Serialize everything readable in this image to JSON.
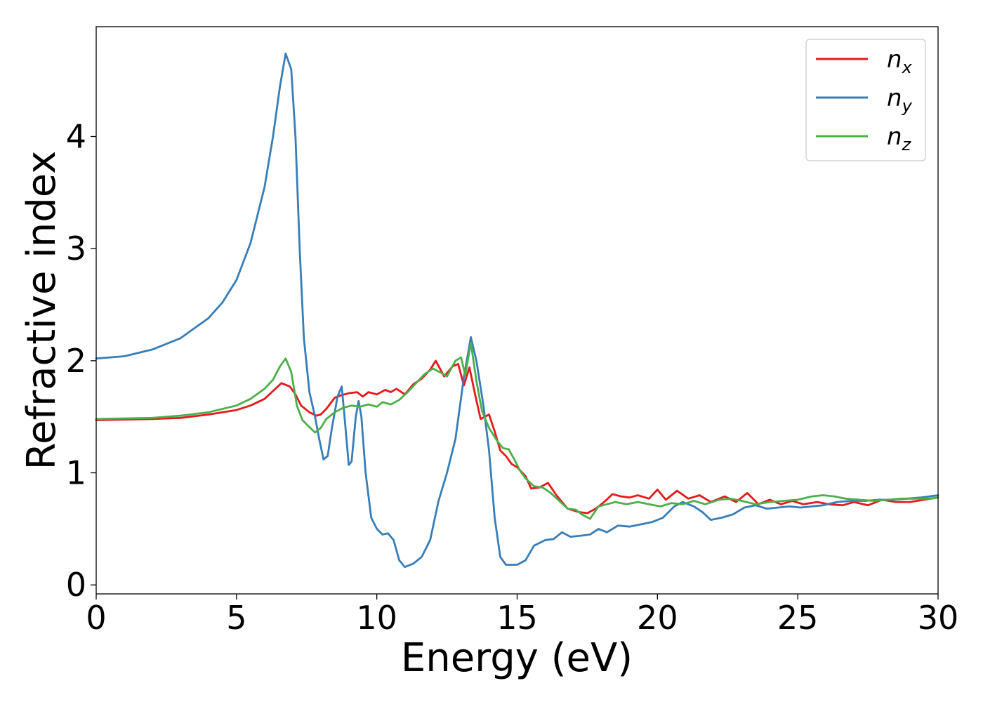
{
  "chart_data": {
    "type": "line",
    "title": "",
    "xlabel": "Energy (eV)",
    "ylabel": "Refractive index",
    "xlim": [
      0,
      30
    ],
    "ylim": [
      -0.08,
      4.98
    ],
    "xticks": [
      0,
      5,
      10,
      15,
      20,
      25,
      30
    ],
    "yticks": [
      0,
      1,
      2,
      3,
      4
    ],
    "grid": false,
    "legend_position": "top-right",
    "series": [
      {
        "name": "n_x",
        "legend_base": "n",
        "legend_sub": "x",
        "color": "#e41a1c",
        "points": [
          [
            0,
            1.47
          ],
          [
            2,
            1.48
          ],
          [
            3,
            1.49
          ],
          [
            4,
            1.52
          ],
          [
            5,
            1.56
          ],
          [
            5.5,
            1.6
          ],
          [
            6,
            1.66
          ],
          [
            6.3,
            1.73
          ],
          [
            6.6,
            1.8
          ],
          [
            6.9,
            1.77
          ],
          [
            7.1,
            1.7
          ],
          [
            7.3,
            1.6
          ],
          [
            7.6,
            1.54
          ],
          [
            7.85,
            1.51
          ],
          [
            8.0,
            1.52
          ],
          [
            8.2,
            1.57
          ],
          [
            8.5,
            1.67
          ],
          [
            8.7,
            1.69
          ],
          [
            9.0,
            1.71
          ],
          [
            9.3,
            1.72
          ],
          [
            9.5,
            1.68
          ],
          [
            9.7,
            1.72
          ],
          [
            10.0,
            1.7
          ],
          [
            10.3,
            1.74
          ],
          [
            10.5,
            1.72
          ],
          [
            10.7,
            1.75
          ],
          [
            11.0,
            1.7
          ],
          [
            11.3,
            1.79
          ],
          [
            11.6,
            1.84
          ],
          [
            11.9,
            1.92
          ],
          [
            12.1,
            2.0
          ],
          [
            12.4,
            1.86
          ],
          [
            12.7,
            1.95
          ],
          [
            12.9,
            1.97
          ],
          [
            13.1,
            1.78
          ],
          [
            13.3,
            1.94
          ],
          [
            13.5,
            1.7
          ],
          [
            13.7,
            1.48
          ],
          [
            14.0,
            1.52
          ],
          [
            14.2,
            1.37
          ],
          [
            14.4,
            1.2
          ],
          [
            14.6,
            1.15
          ],
          [
            14.8,
            1.08
          ],
          [
            15.0,
            1.05
          ],
          [
            15.3,
            0.97
          ],
          [
            15.5,
            0.86
          ],
          [
            15.8,
            0.87
          ],
          [
            16.1,
            0.91
          ],
          [
            16.4,
            0.8
          ],
          [
            16.8,
            0.68
          ],
          [
            17.2,
            0.65
          ],
          [
            17.5,
            0.64
          ],
          [
            17.8,
            0.68
          ],
          [
            18.1,
            0.74
          ],
          [
            18.4,
            0.81
          ],
          [
            18.7,
            0.79
          ],
          [
            19.0,
            0.78
          ],
          [
            19.3,
            0.8
          ],
          [
            19.7,
            0.77
          ],
          [
            20.0,
            0.85
          ],
          [
            20.3,
            0.76
          ],
          [
            20.7,
            0.84
          ],
          [
            21.1,
            0.77
          ],
          [
            21.5,
            0.8
          ],
          [
            21.9,
            0.74
          ],
          [
            22.4,
            0.79
          ],
          [
            22.8,
            0.74
          ],
          [
            23.2,
            0.82
          ],
          [
            23.6,
            0.72
          ],
          [
            24.0,
            0.76
          ],
          [
            24.4,
            0.72
          ],
          [
            24.8,
            0.75
          ],
          [
            25.2,
            0.72
          ],
          [
            25.7,
            0.74
          ],
          [
            26.1,
            0.72
          ],
          [
            26.6,
            0.71
          ],
          [
            27.0,
            0.74
          ],
          [
            27.5,
            0.71
          ],
          [
            28.0,
            0.76
          ],
          [
            28.5,
            0.74
          ],
          [
            29.0,
            0.74
          ],
          [
            29.5,
            0.76
          ],
          [
            30,
            0.78
          ]
        ]
      },
      {
        "name": "n_y",
        "legend_base": "n",
        "legend_sub": "y",
        "color": "#377eb8",
        "points": [
          [
            0,
            2.02
          ],
          [
            1,
            2.04
          ],
          [
            2,
            2.1
          ],
          [
            3,
            2.2
          ],
          [
            4,
            2.38
          ],
          [
            4.5,
            2.52
          ],
          [
            5,
            2.72
          ],
          [
            5.5,
            3.05
          ],
          [
            6,
            3.55
          ],
          [
            6.3,
            4.0
          ],
          [
            6.55,
            4.45
          ],
          [
            6.75,
            4.74
          ],
          [
            6.95,
            4.6
          ],
          [
            7.1,
            4.0
          ],
          [
            7.25,
            3.0
          ],
          [
            7.4,
            2.2
          ],
          [
            7.6,
            1.72
          ],
          [
            7.8,
            1.5
          ],
          [
            7.95,
            1.3
          ],
          [
            8.1,
            1.12
          ],
          [
            8.25,
            1.15
          ],
          [
            8.4,
            1.4
          ],
          [
            8.6,
            1.68
          ],
          [
            8.75,
            1.77
          ],
          [
            8.85,
            1.5
          ],
          [
            9.0,
            1.07
          ],
          [
            9.1,
            1.1
          ],
          [
            9.25,
            1.5
          ],
          [
            9.35,
            1.64
          ],
          [
            9.45,
            1.5
          ],
          [
            9.6,
            1.0
          ],
          [
            9.8,
            0.6
          ],
          [
            10.0,
            0.5
          ],
          [
            10.2,
            0.45
          ],
          [
            10.4,
            0.46
          ],
          [
            10.6,
            0.4
          ],
          [
            10.8,
            0.22
          ],
          [
            11.0,
            0.16
          ],
          [
            11.3,
            0.19
          ],
          [
            11.6,
            0.25
          ],
          [
            11.9,
            0.4
          ],
          [
            12.2,
            0.75
          ],
          [
            12.5,
            1.0
          ],
          [
            12.8,
            1.3
          ],
          [
            13.1,
            1.85
          ],
          [
            13.35,
            2.21
          ],
          [
            13.55,
            2.0
          ],
          [
            13.8,
            1.6
          ],
          [
            14.0,
            1.2
          ],
          [
            14.2,
            0.6
          ],
          [
            14.4,
            0.25
          ],
          [
            14.6,
            0.18
          ],
          [
            15.0,
            0.18
          ],
          [
            15.3,
            0.22
          ],
          [
            15.6,
            0.35
          ],
          [
            16.0,
            0.4
          ],
          [
            16.3,
            0.41
          ],
          [
            16.6,
            0.47
          ],
          [
            16.9,
            0.43
          ],
          [
            17.3,
            0.44
          ],
          [
            17.6,
            0.45
          ],
          [
            17.9,
            0.5
          ],
          [
            18.2,
            0.47
          ],
          [
            18.6,
            0.53
          ],
          [
            19.0,
            0.52
          ],
          [
            19.4,
            0.54
          ],
          [
            19.8,
            0.56
          ],
          [
            20.2,
            0.6
          ],
          [
            20.6,
            0.7
          ],
          [
            20.9,
            0.74
          ],
          [
            21.3,
            0.7
          ],
          [
            21.6,
            0.65
          ],
          [
            21.9,
            0.58
          ],
          [
            22.3,
            0.6
          ],
          [
            22.7,
            0.63
          ],
          [
            23.1,
            0.69
          ],
          [
            23.5,
            0.71
          ],
          [
            23.9,
            0.68
          ],
          [
            24.3,
            0.69
          ],
          [
            24.7,
            0.7
          ],
          [
            25.1,
            0.69
          ],
          [
            25.5,
            0.7
          ],
          [
            25.9,
            0.71
          ],
          [
            26.4,
            0.74
          ],
          [
            26.9,
            0.75
          ],
          [
            27.4,
            0.75
          ],
          [
            27.9,
            0.76
          ],
          [
            28.4,
            0.76
          ],
          [
            28.9,
            0.77
          ],
          [
            29.4,
            0.78
          ],
          [
            30,
            0.8
          ]
        ]
      },
      {
        "name": "n_z",
        "legend_base": "n",
        "legend_sub": "z",
        "color": "#4daf4a",
        "points": [
          [
            0,
            1.48
          ],
          [
            2,
            1.49
          ],
          [
            3,
            1.51
          ],
          [
            4,
            1.54
          ],
          [
            5,
            1.6
          ],
          [
            5.5,
            1.66
          ],
          [
            6,
            1.75
          ],
          [
            6.3,
            1.83
          ],
          [
            6.55,
            1.95
          ],
          [
            6.75,
            2.02
          ],
          [
            6.95,
            1.9
          ],
          [
            7.15,
            1.6
          ],
          [
            7.35,
            1.47
          ],
          [
            7.55,
            1.42
          ],
          [
            7.8,
            1.36
          ],
          [
            8.0,
            1.4
          ],
          [
            8.2,
            1.48
          ],
          [
            8.5,
            1.54
          ],
          [
            8.8,
            1.58
          ],
          [
            9.1,
            1.6
          ],
          [
            9.4,
            1.59
          ],
          [
            9.7,
            1.61
          ],
          [
            10.0,
            1.59
          ],
          [
            10.2,
            1.63
          ],
          [
            10.5,
            1.61
          ],
          [
            10.8,
            1.65
          ],
          [
            11.1,
            1.72
          ],
          [
            11.4,
            1.8
          ],
          [
            11.7,
            1.88
          ],
          [
            12.0,
            1.93
          ],
          [
            12.3,
            1.89
          ],
          [
            12.5,
            1.86
          ],
          [
            12.8,
            2.0
          ],
          [
            13.0,
            2.03
          ],
          [
            13.15,
            1.87
          ],
          [
            13.35,
            2.16
          ],
          [
            13.55,
            1.82
          ],
          [
            13.75,
            1.55
          ],
          [
            14.0,
            1.4
          ],
          [
            14.3,
            1.28
          ],
          [
            14.5,
            1.22
          ],
          [
            14.7,
            1.21
          ],
          [
            14.9,
            1.12
          ],
          [
            15.1,
            1.02
          ],
          [
            15.3,
            0.95
          ],
          [
            15.6,
            0.88
          ],
          [
            15.9,
            0.87
          ],
          [
            16.2,
            0.82
          ],
          [
            16.5,
            0.75
          ],
          [
            16.8,
            0.68
          ],
          [
            17.1,
            0.67
          ],
          [
            17.3,
            0.63
          ],
          [
            17.6,
            0.59
          ],
          [
            17.9,
            0.7
          ],
          [
            18.2,
            0.72
          ],
          [
            18.5,
            0.74
          ],
          [
            18.9,
            0.72
          ],
          [
            19.3,
            0.74
          ],
          [
            19.7,
            0.72
          ],
          [
            20.1,
            0.7
          ],
          [
            20.5,
            0.73
          ],
          [
            20.9,
            0.72
          ],
          [
            21.3,
            0.75
          ],
          [
            21.7,
            0.72
          ],
          [
            22.2,
            0.76
          ],
          [
            22.6,
            0.77
          ],
          [
            23.0,
            0.75
          ],
          [
            23.5,
            0.72
          ],
          [
            24.0,
            0.74
          ],
          [
            24.5,
            0.75
          ],
          [
            25.0,
            0.76
          ],
          [
            25.5,
            0.79
          ],
          [
            25.9,
            0.8
          ],
          [
            26.3,
            0.79
          ],
          [
            26.7,
            0.77
          ],
          [
            27.2,
            0.76
          ],
          [
            27.7,
            0.75
          ],
          [
            28.2,
            0.76
          ],
          [
            28.7,
            0.77
          ],
          [
            29.2,
            0.77
          ],
          [
            29.7,
            0.77
          ],
          [
            30,
            0.78
          ]
        ]
      }
    ]
  }
}
